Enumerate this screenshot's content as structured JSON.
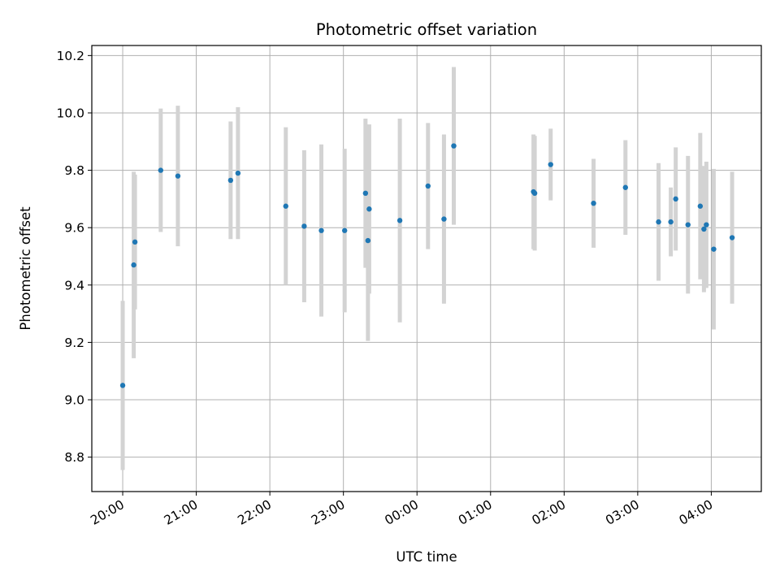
{
  "chart_data": {
    "type": "scatter",
    "title": "Photometric offset variation",
    "xlabel": "UTC time",
    "ylabel": "Photometric offset",
    "x_axis": {
      "kind": "time",
      "range_hours": [
        19.58,
        28.68
      ],
      "ticks": [
        {
          "hour": 20,
          "label": "20:00"
        },
        {
          "hour": 21,
          "label": "21:00"
        },
        {
          "hour": 22,
          "label": "22:00"
        },
        {
          "hour": 23,
          "label": "23:00"
        },
        {
          "hour": 24,
          "label": "00:00"
        },
        {
          "hour": 25,
          "label": "01:00"
        },
        {
          "hour": 26,
          "label": "02:00"
        },
        {
          "hour": 27,
          "label": "03:00"
        },
        {
          "hour": 28,
          "label": "04:00"
        }
      ]
    },
    "y_axis": {
      "range": [
        8.68,
        10.235
      ],
      "ticks": [
        8.8,
        9.0,
        9.2,
        9.4,
        9.6,
        9.8,
        10.0,
        10.2
      ]
    },
    "grid": true,
    "colors": {
      "point": "#1f77b4",
      "errorbar": "#d3d3d3",
      "grid": "#b0b0b0"
    },
    "points": [
      {
        "time": "20:00",
        "y": 9.05,
        "err": 0.295
      },
      {
        "time": "20:09",
        "y": 9.47,
        "err": 0.325
      },
      {
        "time": "20:10",
        "y": 9.55,
        "err": 0.235
      },
      {
        "time": "20:31",
        "y": 9.8,
        "err": 0.215
      },
      {
        "time": "20:45",
        "y": 9.78,
        "err": 0.245
      },
      {
        "time": "21:28",
        "y": 9.765,
        "err": 0.205
      },
      {
        "time": "21:34",
        "y": 9.79,
        "err": 0.23
      },
      {
        "time": "22:13",
        "y": 9.675,
        "err": 0.275
      },
      {
        "time": "22:28",
        "y": 9.605,
        "err": 0.265
      },
      {
        "time": "22:42",
        "y": 9.59,
        "err": 0.3
      },
      {
        "time": "23:01",
        "y": 9.59,
        "err": 0.285
      },
      {
        "time": "23:18",
        "y": 9.72,
        "err": 0.26
      },
      {
        "time": "23:20",
        "y": 9.555,
        "err": 0.35
      },
      {
        "time": "23:21",
        "y": 9.665,
        "err": 0.295
      },
      {
        "time": "23:46",
        "y": 9.625,
        "err": 0.355
      },
      {
        "time": "00:09",
        "y": 9.745,
        "err": 0.22
      },
      {
        "time": "00:22",
        "y": 9.63,
        "err": 0.295
      },
      {
        "time": "00:30",
        "y": 9.885,
        "err": 0.275
      },
      {
        "time": "01:35",
        "y": 9.725,
        "err": 0.2
      },
      {
        "time": "01:36",
        "y": 9.72,
        "err": 0.2
      },
      {
        "time": "01:49",
        "y": 9.82,
        "err": 0.125
      },
      {
        "time": "02:24",
        "y": 9.685,
        "err": 0.155
      },
      {
        "time": "02:50",
        "y": 9.74,
        "err": 0.165
      },
      {
        "time": "03:17",
        "y": 9.62,
        "err": 0.205
      },
      {
        "time": "03:27",
        "y": 9.62,
        "err": 0.12
      },
      {
        "time": "03:31",
        "y": 9.7,
        "err": 0.18
      },
      {
        "time": "03:41",
        "y": 9.61,
        "err": 0.24
      },
      {
        "time": "03:51",
        "y": 9.675,
        "err": 0.255
      },
      {
        "time": "03:54",
        "y": 9.595,
        "err": 0.22
      },
      {
        "time": "03:56",
        "y": 9.61,
        "err": 0.22
      },
      {
        "time": "04:02",
        "y": 9.525,
        "err": 0.28
      },
      {
        "time": "04:17",
        "y": 9.565,
        "err": 0.23
      }
    ]
  }
}
